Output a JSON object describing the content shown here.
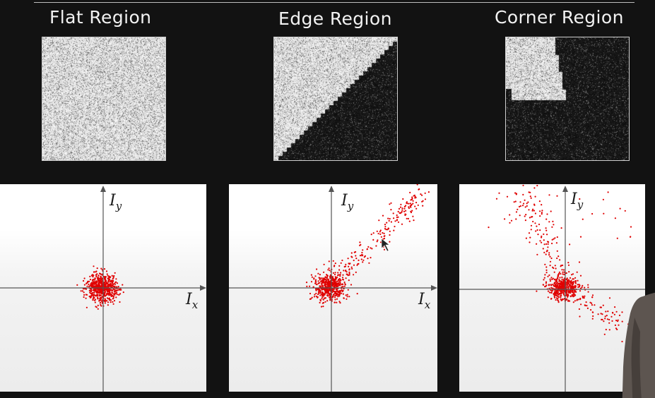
{
  "slide": {
    "regions": [
      {
        "id": "flat",
        "title": "Flat Region",
        "patch_type": "uniform-bright-noise",
        "axis_labels": {
          "y": "I",
          "y_sub": "y",
          "x": "I",
          "x_sub": "x"
        },
        "scatter": "concentrated cluster at origin"
      },
      {
        "id": "edge",
        "title": "Edge Region",
        "patch_type": "diagonal-edge",
        "axis_labels": {
          "y": "I",
          "y_sub": "y",
          "x": "I",
          "x_sub": "x"
        },
        "scatter": "cluster at origin plus elongated spread along the first-quadrant diagonal"
      },
      {
        "id": "corner",
        "title": "Corner Region",
        "patch_type": "corner-wedge",
        "axis_labels": {
          "y": "I",
          "y_sub": "y"
        },
        "scatter": "cluster near origin with spread in multiple directions"
      }
    ],
    "colors": {
      "background": "#121212",
      "title_text": "#f2f2f2",
      "points": "#e00000",
      "axes": "#555555"
    }
  }
}
